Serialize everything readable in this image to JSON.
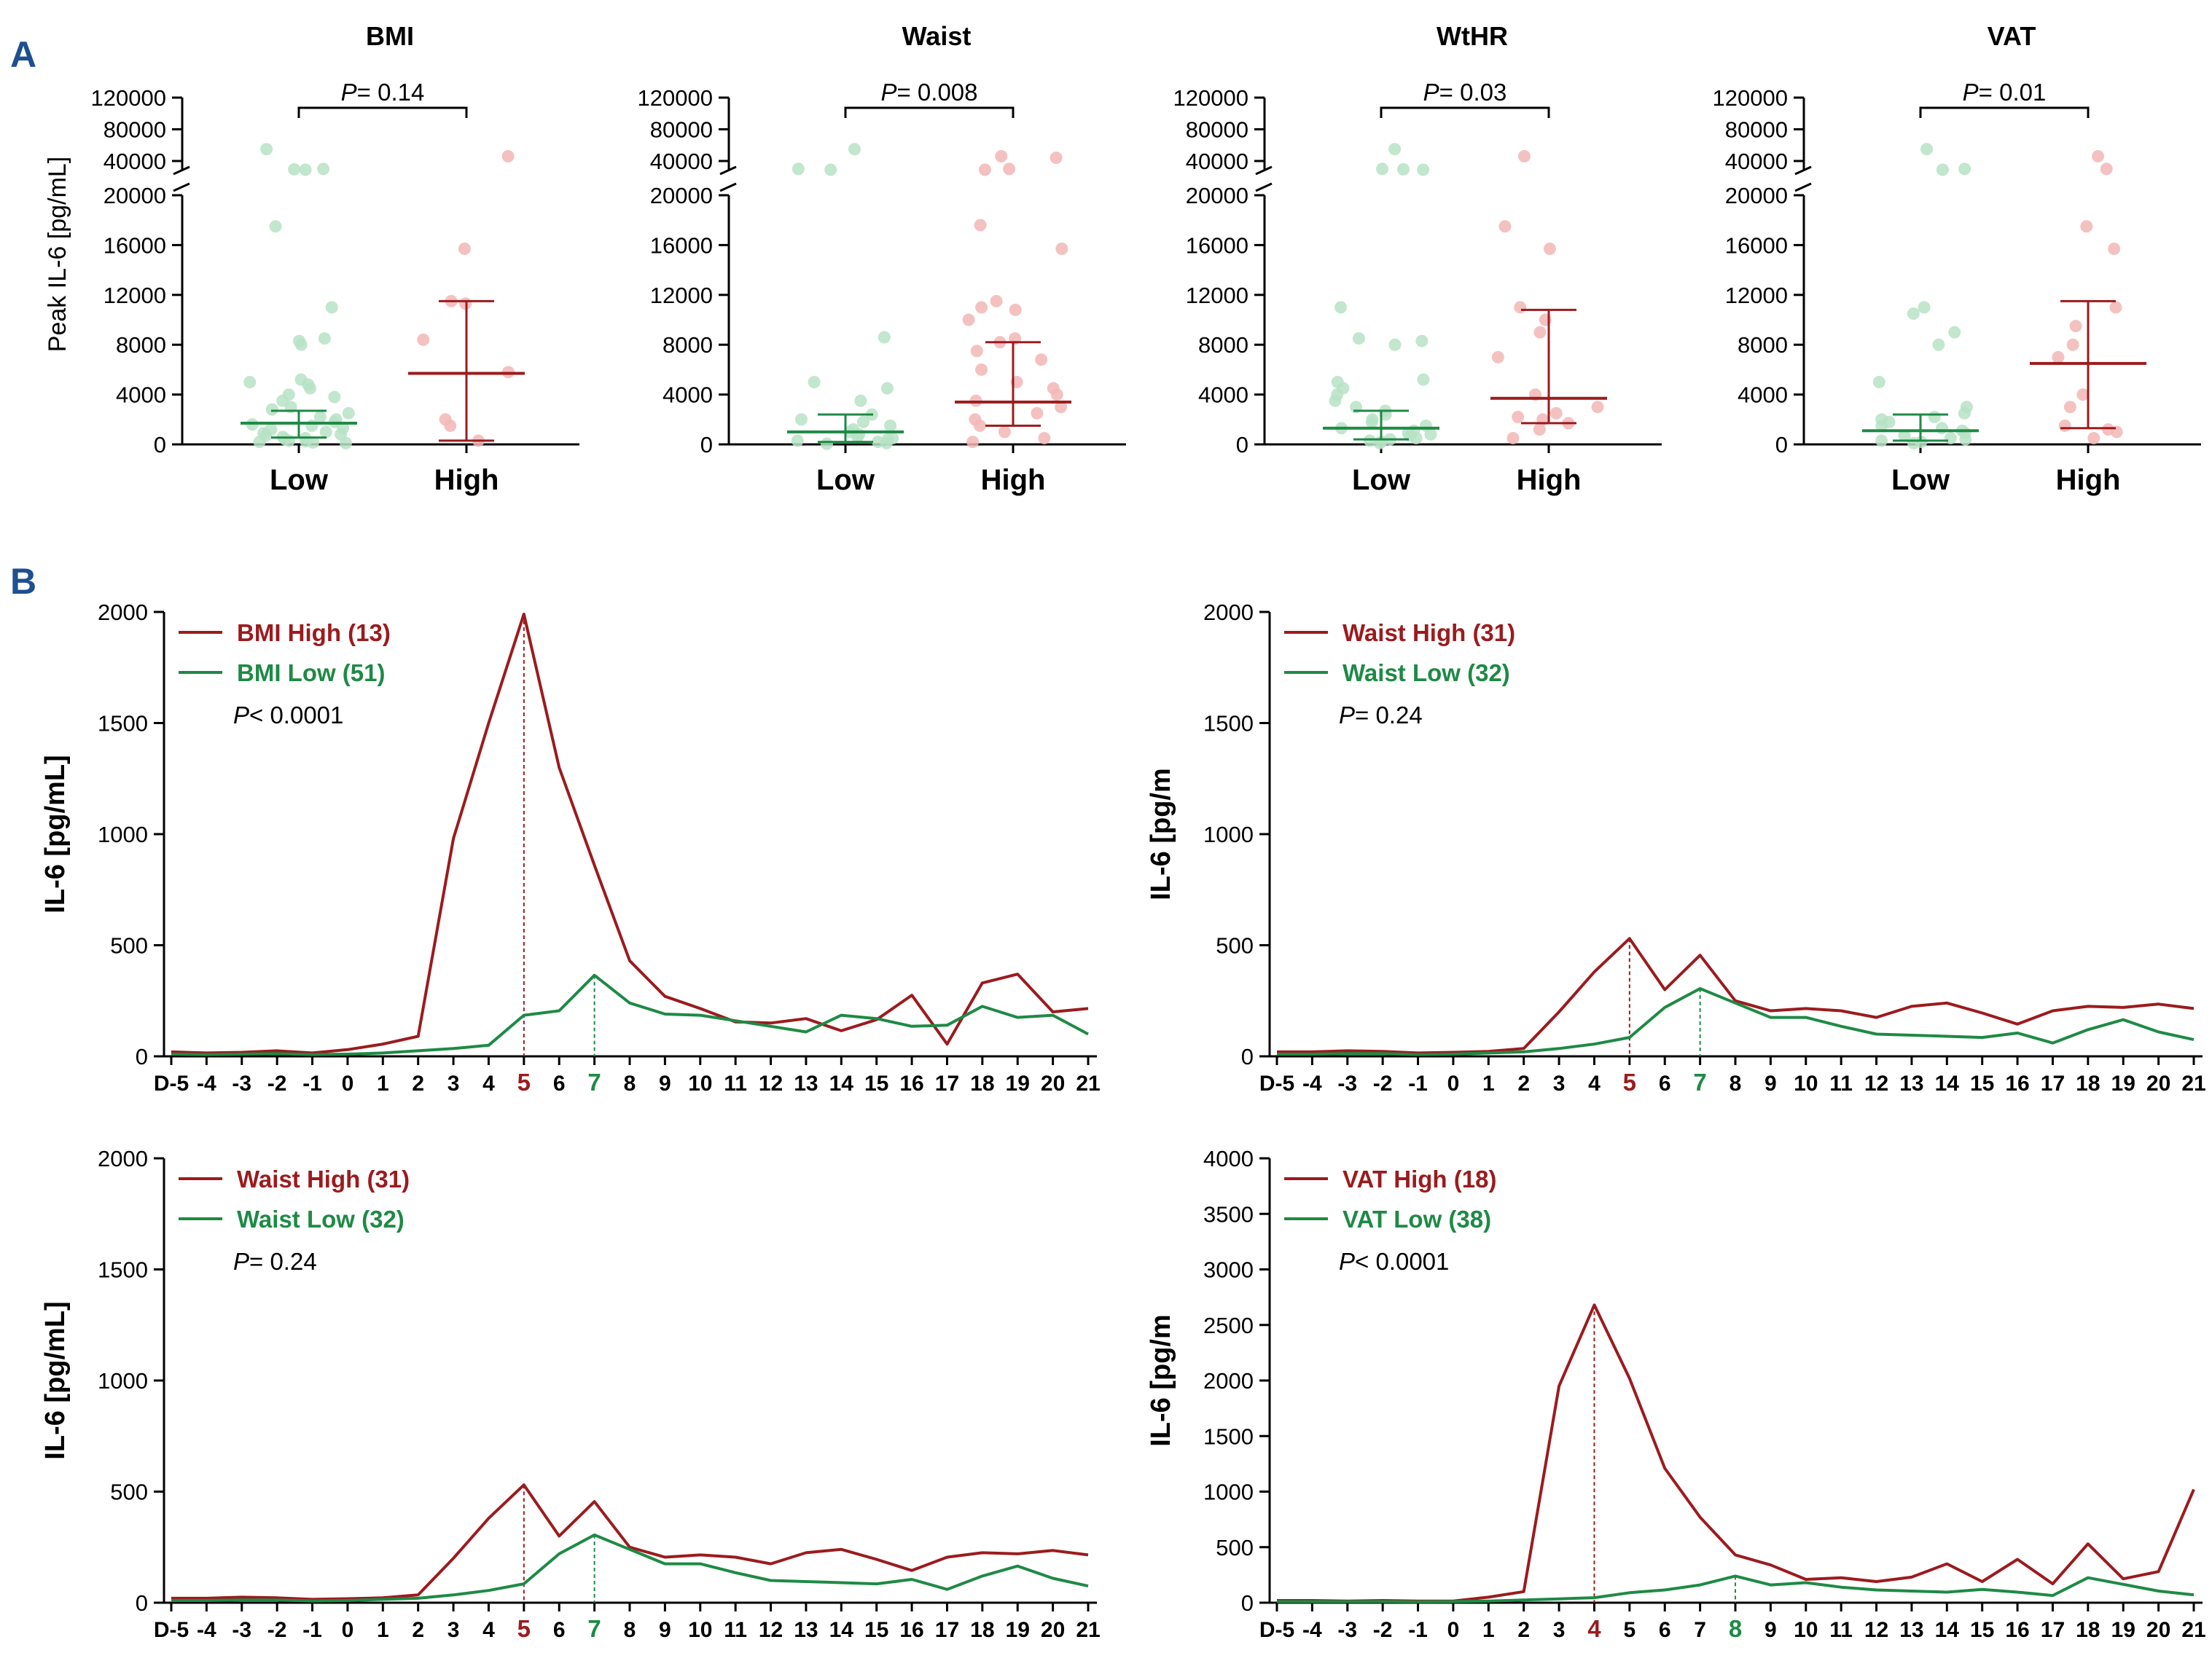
{
  "panel_labels": {
    "a": "A",
    "b": "B"
  },
  "colors": {
    "high": "#9b1b1e",
    "low": "#1e8a45",
    "high_light": "#f2b6b6",
    "low_light": "#b7e2c6",
    "panel_label": "#1d4f91",
    "axis": "#000000"
  },
  "chart_data": [
    {
      "id": "a1",
      "type": "scatter",
      "title": "BMI",
      "ylabel": "Peak IL-6 [pg/mL]",
      "categories": [
        "Low",
        "High"
      ],
      "y_lower_ticks": [
        "0",
        "4000",
        "8000",
        "12000",
        "16000",
        "20000"
      ],
      "y_upper_ticks": [
        "40000",
        "80000",
        "120000"
      ],
      "ylim_lower": [
        0,
        20000
      ],
      "ylim_upper": [
        20000,
        120000
      ],
      "p_prefix": "P",
      "p_text": "= 0.14",
      "groups": [
        {
          "name": "Low",
          "median": 1700,
          "q1": 550,
          "q3": 2700,
          "points": [
            55000,
            30000,
            29000,
            29500,
            17500,
            11000,
            8500,
            8300,
            8000,
            5200,
            5000,
            4800,
            4500,
            4000,
            3800,
            3500,
            3000,
            2800,
            2500,
            2200,
            2000,
            1800,
            1600,
            1500,
            1300,
            1200,
            1000,
            900,
            800,
            700,
            600,
            500,
            400,
            300,
            250,
            200,
            150,
            100
          ]
        },
        {
          "name": "High",
          "median": 5700,
          "q1": 300,
          "q3": 11500,
          "points": [
            46000,
            15700,
            11500,
            11300,
            8400,
            5800,
            2000,
            1500,
            300
          ]
        }
      ]
    },
    {
      "id": "a2",
      "type": "scatter",
      "title": "Waist",
      "ylabel": "",
      "categories": [
        "Low",
        "High"
      ],
      "y_lower_ticks": [
        "0",
        "4000",
        "8000",
        "12000",
        "16000",
        "20000"
      ],
      "y_upper_ticks": [
        "40000",
        "80000",
        "120000"
      ],
      "ylim_lower": [
        0,
        20000
      ],
      "ylim_upper": [
        20000,
        120000
      ],
      "p_prefix": "P",
      "p_text": "= 0.008",
      "groups": [
        {
          "name": "Low",
          "median": 1000,
          "q1": 200,
          "q3": 2400,
          "points": [
            55000,
            30000,
            29000,
            8600,
            5000,
            4500,
            3500,
            2400,
            2000,
            1800,
            1500,
            1200,
            1000,
            800,
            600,
            500,
            400,
            300,
            200,
            100,
            50
          ]
        },
        {
          "name": "High",
          "median": 3400,
          "q1": 1500,
          "q3": 8200,
          "points": [
            46000,
            44000,
            30000,
            29000,
            17600,
            15700,
            11500,
            11000,
            10800,
            10000,
            8500,
            8200,
            7500,
            6800,
            6000,
            5000,
            4500,
            4000,
            3500,
            3000,
            2500,
            2000,
            1500,
            1000,
            500,
            200
          ]
        }
      ]
    },
    {
      "id": "a3",
      "type": "scatter",
      "title": "WtHR",
      "ylabel": "",
      "categories": [
        "Low",
        "High"
      ],
      "y_lower_ticks": [
        "0",
        "4000",
        "8000",
        "12000",
        "16000",
        "20000"
      ],
      "y_upper_ticks": [
        "40000",
        "80000",
        "120000"
      ],
      "ylim_lower": [
        0,
        20000
      ],
      "ylim_upper": [
        20000,
        120000
      ],
      "p_prefix": "P",
      "p_text": "= 0.03",
      "groups": [
        {
          "name": "Low",
          "median": 1300,
          "q1": 400,
          "q3": 2700,
          "points": [
            55000,
            30000,
            29000,
            29500,
            11000,
            8500,
            8300,
            8000,
            5200,
            5000,
            4500,
            4000,
            3500,
            3000,
            2700,
            2400,
            2000,
            1800,
            1500,
            1300,
            1100,
            900,
            800,
            700,
            500,
            400,
            300,
            200,
            100
          ]
        },
        {
          "name": "High",
          "median": 3700,
          "q1": 1700,
          "q3": 10800,
          "points": [
            46000,
            17500,
            15700,
            11000,
            10000,
            9000,
            7000,
            4000,
            3000,
            2500,
            2200,
            2000,
            1700,
            1200,
            500
          ]
        }
      ]
    },
    {
      "id": "a4",
      "type": "scatter",
      "title": "VAT",
      "ylabel": "",
      "categories": [
        "Low",
        "High"
      ],
      "y_lower_ticks": [
        "0",
        "4000",
        "8000",
        "12000",
        "16000",
        "20000"
      ],
      "y_upper_ticks": [
        "40000",
        "80000",
        "120000"
      ],
      "ylim_lower": [
        0,
        20000
      ],
      "ylim_upper": [
        20000,
        120000
      ],
      "p_prefix": "P",
      "p_text": "= 0.01",
      "groups": [
        {
          "name": "Low",
          "median": 1100,
          "q1": 300,
          "q3": 2400,
          "points": [
            55000,
            30000,
            29000,
            11000,
            10500,
            9000,
            8000,
            5000,
            3000,
            2500,
            2200,
            2000,
            1800,
            1500,
            1300,
            1100,
            900,
            700,
            500,
            400,
            300,
            200,
            100
          ]
        },
        {
          "name": "High",
          "median": 6500,
          "q1": 1300,
          "q3": 11500,
          "points": [
            46000,
            30000,
            17500,
            15700,
            11000,
            9500,
            8000,
            7000,
            4000,
            3000,
            1500,
            1200,
            1000,
            500
          ]
        }
      ]
    },
    {
      "id": "b1",
      "type": "line",
      "x": [
        "D-5",
        "-4",
        "-3",
        "-2",
        "-1",
        "0",
        "1",
        "2",
        "3",
        "4",
        "5",
        "6",
        "7",
        "8",
        "9",
        "10",
        "11",
        "12",
        "13",
        "14",
        "15",
        "16",
        "17",
        "18",
        "19",
        "20",
        "21"
      ],
      "ylabel": "IL-6 [pg/mL]",
      "ylim": [
        0,
        2000
      ],
      "yticks": [
        "0",
        "500",
        "1000",
        "1500",
        "2000"
      ],
      "p_prefix": "P",
      "p_text": "< 0.0001",
      "series": [
        {
          "name": "BMI High (13)",
          "color": "high",
          "peak_index": 10,
          "values": [
            20,
            15,
            18,
            25,
            15,
            30,
            55,
            90,
            980,
            1500,
            1990,
            1300,
            860,
            430,
            270,
            215,
            155,
            150,
            170,
            115,
            165,
            275,
            55,
            330,
            370,
            200,
            215
          ]
        },
        {
          "name": "BMI Low (51)",
          "color": "low",
          "peak_index": 12,
          "values": [
            10,
            8,
            10,
            12,
            8,
            10,
            15,
            25,
            35,
            50,
            185,
            205,
            365,
            240,
            190,
            185,
            160,
            135,
            110,
            185,
            170,
            135,
            140,
            225,
            175,
            185,
            100
          ]
        }
      ]
    },
    {
      "id": "b2",
      "type": "line",
      "x": [
        "D-5",
        "-4",
        "-3",
        "-2",
        "-1",
        "0",
        "1",
        "2",
        "3",
        "4",
        "5",
        "6",
        "7",
        "8",
        "9",
        "10",
        "11",
        "12",
        "13",
        "14",
        "15",
        "16",
        "17",
        "18",
        "19",
        "20",
        "21"
      ],
      "ylabel": "IL-6 [pg/m",
      "ylim": [
        0,
        2000
      ],
      "yticks": [
        "0",
        "500",
        "1000",
        "1500",
        "2000"
      ],
      "p_prefix": "P",
      "p_text": "= 0.24",
      "series": [
        {
          "name": "Waist High (31)",
          "color": "high",
          "peak_index": 10,
          "values": [
            20,
            20,
            25,
            22,
            15,
            18,
            22,
            35,
            200,
            380,
            530,
            300,
            455,
            250,
            205,
            215,
            205,
            175,
            225,
            240,
            195,
            145,
            205,
            225,
            220,
            235,
            215
          ]
        },
        {
          "name": "Waist Low (32)",
          "color": "low",
          "peak_index": 12,
          "values": [
            10,
            10,
            12,
            12,
            8,
            10,
            15,
            20,
            35,
            55,
            85,
            220,
            305,
            240,
            175,
            175,
            135,
            100,
            95,
            90,
            85,
            105,
            60,
            120,
            165,
            110,
            75
          ]
        }
      ]
    },
    {
      "id": "b3",
      "type": "line",
      "x": [
        "D-5",
        "-4",
        "-3",
        "-2",
        "-1",
        "0",
        "1",
        "2",
        "3",
        "4",
        "5",
        "6",
        "7",
        "8",
        "9",
        "10",
        "11",
        "12",
        "13",
        "14",
        "15",
        "16",
        "17",
        "18",
        "19",
        "20",
        "21"
      ],
      "ylabel": "IL-6 [pg/mL]",
      "ylim": [
        0,
        2000
      ],
      "yticks": [
        "0",
        "500",
        "1000",
        "1500",
        "2000"
      ],
      "p_prefix": "P",
      "p_text": "= 0.24",
      "series": [
        {
          "name": "Waist High (31)",
          "color": "high",
          "peak_index": 10,
          "values": [
            20,
            20,
            25,
            22,
            15,
            18,
            22,
            35,
            200,
            380,
            530,
            300,
            455,
            250,
            205,
            215,
            205,
            175,
            225,
            240,
            195,
            145,
            205,
            225,
            220,
            235,
            215
          ]
        },
        {
          "name": "Waist Low (32)",
          "color": "low",
          "peak_index": 12,
          "values": [
            10,
            10,
            12,
            12,
            8,
            10,
            15,
            20,
            35,
            55,
            85,
            220,
            305,
            240,
            175,
            175,
            135,
            100,
            95,
            90,
            85,
            105,
            60,
            120,
            165,
            110,
            75
          ]
        }
      ]
    },
    {
      "id": "b4",
      "type": "line",
      "x": [
        "D-5",
        "-4",
        "-3",
        "-2",
        "-1",
        "0",
        "1",
        "2",
        "3",
        "4",
        "5",
        "6",
        "7",
        "8",
        "9",
        "10",
        "11",
        "12",
        "13",
        "14",
        "15",
        "16",
        "17",
        "18",
        "19",
        "20",
        "21"
      ],
      "ylabel": "IL-6 [pg/m",
      "ylim": [
        0,
        4000
      ],
      "yticks": [
        "0",
        "500",
        "1000",
        "1500",
        "2000",
        "2500",
        "3000",
        "3500",
        "4000"
      ],
      "p_prefix": "P",
      "p_text": "< 0.0001",
      "series": [
        {
          "name": "VAT High (18)",
          "color": "high",
          "peak_index": 9,
          "values": [
            20,
            20,
            15,
            20,
            15,
            15,
            50,
            100,
            1950,
            2680,
            2020,
            1210,
            770,
            430,
            340,
            210,
            225,
            190,
            230,
            350,
            190,
            390,
            170,
            530,
            215,
            280,
            1020
          ]
        },
        {
          "name": "VAT Low (38)",
          "color": "low",
          "peak_index": 13,
          "values": [
            10,
            10,
            10,
            10,
            8,
            10,
            15,
            25,
            35,
            45,
            90,
            115,
            160,
            240,
            160,
            180,
            140,
            115,
            105,
            95,
            120,
            95,
            65,
            225,
            165,
            105,
            70
          ]
        }
      ]
    }
  ]
}
